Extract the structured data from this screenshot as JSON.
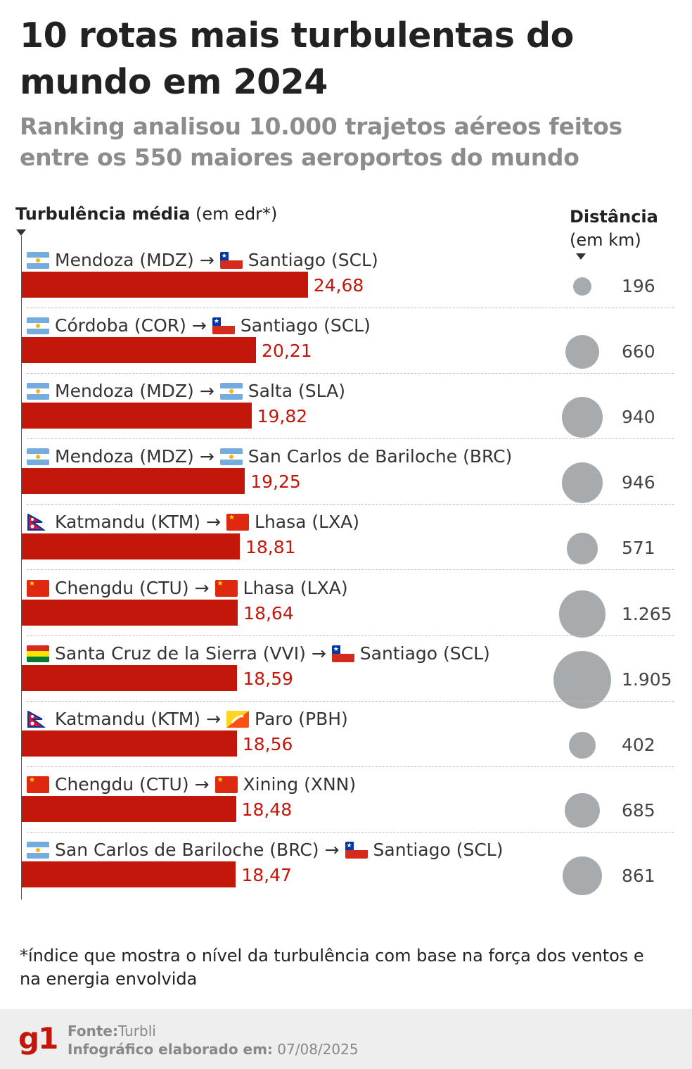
{
  "title": "10 rotas mais turbulentas do mundo em 2024",
  "subtitle": "Ranking analisou 10.000 trajetos aéreos feitos entre os 550 maiores aeroportos do mundo",
  "axis": {
    "bold": "Turbulência média",
    "normal": "(em edr*)"
  },
  "distance_header": {
    "bold": "Distância",
    "normal": "(em km)"
  },
  "footnote": "*índice que mostra o nível da turbulência com base na força dos ventos e na energia envolvida",
  "footer": {
    "logo": "g1",
    "source_label": "Fonte:",
    "source": "Turbli",
    "date_label": "Infográfico elaborado em:",
    "date": "07/08/2025"
  },
  "colors": {
    "bar": "#c4170c",
    "value_text": "#c4170c",
    "bubble": "#a7abae"
  },
  "chart_data": {
    "type": "bar",
    "categories": [
      "Mendoza (MDZ) → Santiago (SCL)",
      "Córdoba (COR) → Santiago (SCL)",
      "Mendoza (MDZ) → Salta (SLA)",
      "Mendoza (MDZ) → San Carlos de Bariloche (BRC)",
      "Katmandu (KTM) → Lhasa (LXA)",
      "Chengdu (CTU) → Lhasa (LXA)",
      "Santa Cruz de la Sierra (VVI) → Santiago (SCL)",
      "Katmandu (KTM) → Paro (PBH)",
      "Chengdu (CTU) → Xining (XNN)",
      "San Carlos de Bariloche (BRC) → Santiago (SCL)"
    ],
    "xlabel": "Turbulência média (em edr*)",
    "series": [
      {
        "name": "Turbulência média",
        "values": [
          24.68,
          20.21,
          19.82,
          19.25,
          18.81,
          18.64,
          18.59,
          18.56,
          18.48,
          18.47
        ]
      },
      {
        "name": "Distância",
        "values": [
          196,
          660,
          940,
          946,
          571,
          1265,
          1905,
          402,
          685,
          861
        ]
      }
    ],
    "rows": [
      {
        "origin": "Mendoza (MDZ)",
        "origin_flag": "argentina-flag",
        "dest": "Santiago (SCL)",
        "dest_flag": "chile-flag",
        "edr": 24.68,
        "edr_label": "24,68",
        "distance": 196,
        "distance_label": "196"
      },
      {
        "origin": "Córdoba (COR)",
        "origin_flag": "argentina-flag",
        "dest": "Santiago (SCL)",
        "dest_flag": "chile-flag",
        "edr": 20.21,
        "edr_label": "20,21",
        "distance": 660,
        "distance_label": "660"
      },
      {
        "origin": "Mendoza (MDZ)",
        "origin_flag": "argentina-flag",
        "dest": "Salta (SLA)",
        "dest_flag": "argentina-flag",
        "edr": 19.82,
        "edr_label": "19,82",
        "distance": 940,
        "distance_label": "940"
      },
      {
        "origin": "Mendoza (MDZ)",
        "origin_flag": "argentina-flag",
        "dest": "San Carlos de Bariloche (BRC)",
        "dest_flag": "argentina-flag",
        "edr": 19.25,
        "edr_label": "19,25",
        "distance": 946,
        "distance_label": "946"
      },
      {
        "origin": "Katmandu (KTM)",
        "origin_flag": "nepal-flag",
        "dest": "Lhasa (LXA)",
        "dest_flag": "china-flag",
        "edr": 18.81,
        "edr_label": "18,81",
        "distance": 571,
        "distance_label": "571"
      },
      {
        "origin": "Chengdu (CTU)",
        "origin_flag": "china-flag",
        "dest": "Lhasa (LXA)",
        "dest_flag": "china-flag",
        "edr": 18.64,
        "edr_label": "18,64",
        "distance": 1265,
        "distance_label": "1.265"
      },
      {
        "origin": "Santa Cruz de la Sierra (VVI)",
        "origin_flag": "bolivia-flag",
        "dest": "Santiago (SCL)",
        "dest_flag": "chile-flag",
        "edr": 18.59,
        "edr_label": "18,59",
        "distance": 1905,
        "distance_label": "1.905"
      },
      {
        "origin": "Katmandu (KTM)",
        "origin_flag": "nepal-flag",
        "dest": "Paro (PBH)",
        "dest_flag": "bhutan-flag",
        "edr": 18.56,
        "edr_label": "18,56",
        "distance": 402,
        "distance_label": "402"
      },
      {
        "origin": "Chengdu (CTU)",
        "origin_flag": "china-flag",
        "dest": "Xining (XNN)",
        "dest_flag": "china-flag",
        "edr": 18.48,
        "edr_label": "18,48",
        "distance": 685,
        "distance_label": "685"
      },
      {
        "origin": "San Carlos de Bariloche (BRC)",
        "origin_flag": "argentina-flag",
        "dest": "Santiago (SCL)",
        "dest_flag": "chile-flag",
        "edr": 18.47,
        "edr_label": "18,47",
        "distance": 861,
        "distance_label": "861"
      }
    ],
    "arrow": "→",
    "grid": false
  }
}
